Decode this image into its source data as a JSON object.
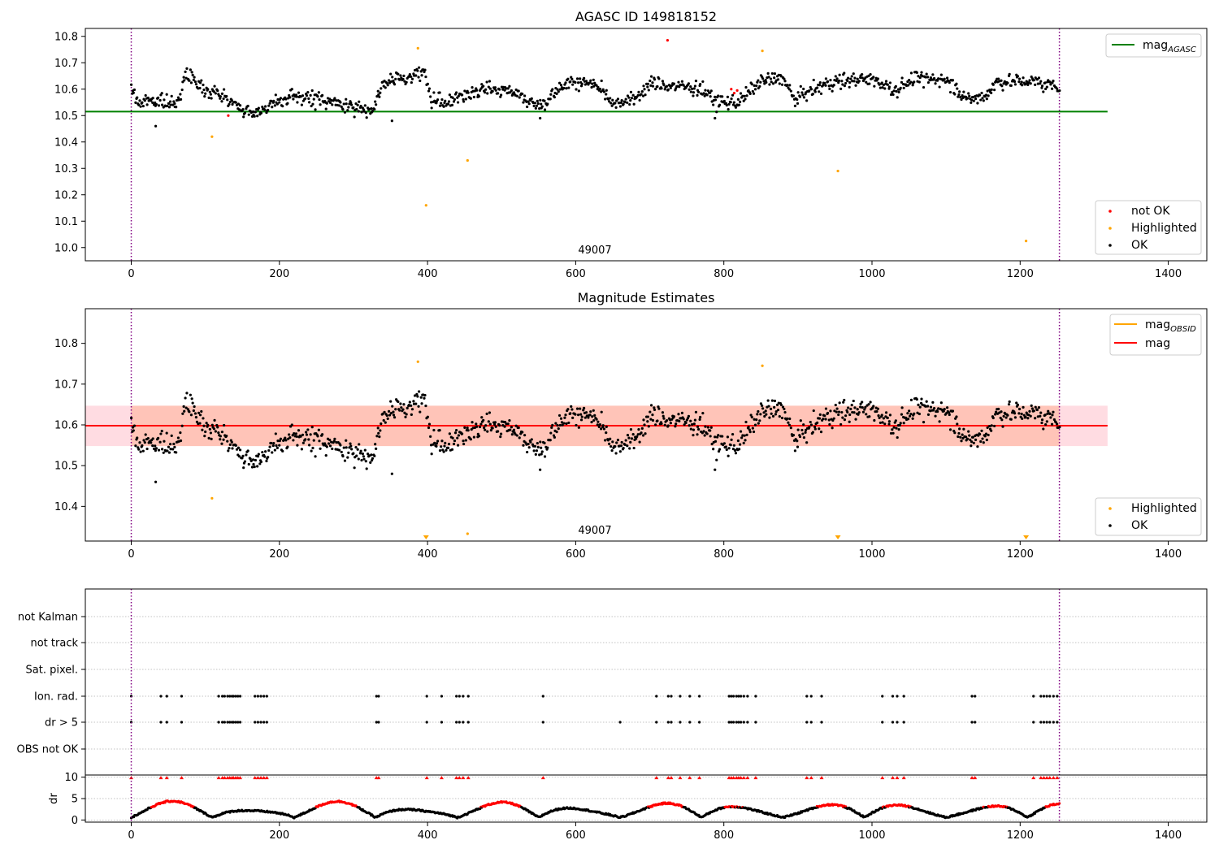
{
  "chart_data": [
    {
      "type": "scatter",
      "title": "AGASC ID 149818152",
      "xlim": [
        -62,
        1452
      ],
      "ylim": [
        9.95,
        10.83
      ],
      "x_ticks": [
        0,
        200,
        400,
        600,
        800,
        1000,
        1200,
        1400
      ],
      "y_ticks": [
        10.0,
        10.1,
        10.2,
        10.3,
        10.4,
        10.5,
        10.6,
        10.7,
        10.8
      ],
      "y_tick_labels": [
        "10.0",
        "10.1",
        "10.2",
        "10.3",
        "10.4",
        "10.5",
        "10.6",
        "10.7",
        "10.8"
      ],
      "obsid_label": "49007",
      "obsid_label_x": 620,
      "vertical_lines_x": [
        0,
        1253
      ],
      "line_legend": [
        {
          "label_main": "mag",
          "label_sub": "AGASC",
          "color": "#008000"
        }
      ],
      "point_legend": [
        {
          "label": "not OK",
          "color": "#ff0000"
        },
        {
          "label": "Highlighted",
          "color": "#ffa500"
        },
        {
          "label": "OK",
          "color": "#000000"
        }
      ],
      "reference_line": {
        "name": "mag_AGASC",
        "value": 10.515,
        "x_range": [
          -62,
          1318
        ],
        "color": "#008000"
      },
      "highlighted_points": [
        {
          "x": 109,
          "y": 10.42
        },
        {
          "x": 387,
          "y": 10.755
        },
        {
          "x": 398,
          "y": 10.16
        },
        {
          "x": 454,
          "y": 10.33
        },
        {
          "x": 852,
          "y": 10.745
        },
        {
          "x": 954,
          "y": 10.29
        },
        {
          "x": 1208,
          "y": 10.025
        }
      ],
      "not_ok_points": [
        {
          "x": 131,
          "y": 10.5
        },
        {
          "x": 724,
          "y": 10.785
        },
        {
          "x": 810,
          "y": 10.6
        },
        {
          "x": 814,
          "y": 10.585
        },
        {
          "x": 818,
          "y": 10.595
        }
      ],
      "ok_series": {
        "x_start": 0,
        "x_end": 1253,
        "count": 1100,
        "seed": 7,
        "level_knots": [
          [
            0,
            10.6
          ],
          [
            10,
            10.55
          ],
          [
            30,
            10.56
          ],
          [
            60,
            10.54
          ],
          [
            75,
            10.66
          ],
          [
            100,
            10.6
          ],
          [
            120,
            10.58
          ],
          [
            135,
            10.55
          ],
          [
            160,
            10.51
          ],
          [
            190,
            10.54
          ],
          [
            220,
            10.57
          ],
          [
            260,
            10.56
          ],
          [
            300,
            10.53
          ],
          [
            325,
            10.52
          ],
          [
            340,
            10.62
          ],
          [
            370,
            10.64
          ],
          [
            395,
            10.67
          ],
          [
            405,
            10.56
          ],
          [
            430,
            10.55
          ],
          [
            470,
            10.6
          ],
          [
            520,
            10.59
          ],
          [
            545,
            10.54
          ],
          [
            560,
            10.55
          ],
          [
            580,
            10.62
          ],
          [
            610,
            10.63
          ],
          [
            630,
            10.61
          ],
          [
            650,
            10.55
          ],
          [
            680,
            10.56
          ],
          [
            700,
            10.62
          ],
          [
            740,
            10.61
          ],
          [
            770,
            10.6
          ],
          [
            790,
            10.55
          ],
          [
            820,
            10.55
          ],
          [
            850,
            10.63
          ],
          [
            880,
            10.64
          ],
          [
            895,
            10.56
          ],
          [
            920,
            10.6
          ],
          [
            950,
            10.63
          ],
          [
            1000,
            10.64
          ],
          [
            1030,
            10.6
          ],
          [
            1060,
            10.64
          ],
          [
            1100,
            10.64
          ],
          [
            1130,
            10.56
          ],
          [
            1150,
            10.57
          ],
          [
            1170,
            10.63
          ],
          [
            1210,
            10.63
          ],
          [
            1253,
            10.61
          ]
        ],
        "noise": 0.025,
        "outliers": [
          {
            "x": 33,
            "y": 10.46
          },
          {
            "x": 352,
            "y": 10.48
          },
          {
            "x": 552,
            "y": 10.49
          },
          {
            "x": 788,
            "y": 10.49
          }
        ]
      }
    },
    {
      "type": "scatter",
      "title": "Magnitude Estimates",
      "xlim": [
        -62,
        1452
      ],
      "ylim": [
        10.315,
        10.885
      ],
      "x_ticks": [
        0,
        200,
        400,
        600,
        800,
        1000,
        1200,
        1400
      ],
      "y_ticks": [
        10.4,
        10.5,
        10.6,
        10.7,
        10.8
      ],
      "y_tick_labels": [
        "10.4",
        "10.5",
        "10.6",
        "10.7",
        "10.8"
      ],
      "obsid_label": "49007",
      "obsid_label_x": 620,
      "vertical_lines_x": [
        0,
        1253
      ],
      "line_legend": [
        {
          "label_main": "mag",
          "label_sub": "OBSID",
          "color": "#ffa500"
        },
        {
          "label_main": "mag",
          "label_sub": "",
          "color": "#ff0000"
        }
      ],
      "point_legend": [
        {
          "label": "Highlighted",
          "color": "#ffa500"
        },
        {
          "label": "OK",
          "color": "#000000"
        }
      ],
      "mag_line": {
        "value": 10.598,
        "x_range": [
          -62,
          1318
        ],
        "color": "#ff0000"
      },
      "mag_band": {
        "low": 10.548,
        "high": 10.647,
        "x_range": [
          -62,
          1318
        ],
        "color": "#ffc0cb"
      },
      "obsid_line": {
        "value": 10.598,
        "x_range": [
          0,
          1253
        ],
        "color": "#ffa500"
      },
      "obsid_band": {
        "low": 10.548,
        "high": 10.647,
        "x_range": [
          0,
          1253
        ],
        "color": "#ffa07a"
      },
      "highlighted_points": [
        {
          "x": 109,
          "y": 10.42
        },
        {
          "x": 387,
          "y": 10.755
        },
        {
          "x": 454,
          "y": 10.333
        },
        {
          "x": 852,
          "y": 10.745
        }
      ],
      "clipped_markers_x": [
        398,
        954,
        1208
      ],
      "ok_series_ref": 0
    },
    {
      "type": "scatter",
      "title": "",
      "xlim": [
        -62,
        1452
      ],
      "x_ticks": [
        0,
        200,
        400,
        600,
        800,
        1000,
        1200,
        1400
      ],
      "vertical_lines_x": [
        0,
        1253
      ],
      "flag_rows": [
        "not Kalman",
        "not track",
        "Sat. pixel.",
        "Ion. rad.",
        "dr > 5",
        "OBS not OK"
      ],
      "ion_rad_x": [
        0,
        40,
        48,
        68,
        118,
        123,
        126,
        130,
        133,
        136,
        138,
        141,
        144,
        147,
        167,
        171,
        175,
        179,
        183,
        331,
        334,
        399,
        419,
        439,
        443,
        448,
        455,
        556,
        709,
        725,
        729,
        741,
        754,
        767,
        807,
        810,
        813,
        817,
        820,
        823,
        827,
        832,
        843,
        912,
        918,
        932,
        1014,
        1028,
        1034,
        1043,
        1135,
        1139,
        1218,
        1228,
        1232,
        1236,
        1240,
        1245,
        1250
      ],
      "dr_gt5_x": [
        0,
        40,
        48,
        68,
        118,
        123,
        126,
        130,
        133,
        136,
        138,
        141,
        144,
        147,
        167,
        171,
        175,
        179,
        183,
        331,
        334,
        399,
        419,
        439,
        443,
        448,
        455,
        556,
        660,
        709,
        725,
        729,
        741,
        754,
        767,
        807,
        810,
        813,
        817,
        820,
        823,
        827,
        832,
        843,
        912,
        918,
        932,
        1014,
        1028,
        1034,
        1043,
        1135,
        1139,
        1218,
        1228,
        1232,
        1236,
        1240,
        1245,
        1250
      ],
      "dr_panel": {
        "ylabel": "dr",
        "ylim": [
          -0.5,
          10.5
        ],
        "y_ticks": [
          0,
          5,
          10
        ],
        "y_tick_labels": [
          "0",
          "5",
          "10"
        ],
        "clipped_x": [
          0,
          40,
          48,
          68,
          118,
          123,
          126,
          130,
          133,
          136,
          138,
          141,
          144,
          147,
          167,
          171,
          175,
          179,
          183,
          331,
          334,
          399,
          419,
          439,
          443,
          448,
          455,
          556,
          709,
          725,
          729,
          741,
          754,
          767,
          807,
          810,
          813,
          817,
          820,
          823,
          827,
          832,
          843,
          912,
          918,
          932,
          1014,
          1028,
          1034,
          1043,
          1135,
          1139,
          1218,
          1228,
          1232,
          1236,
          1240,
          1245,
          1250
        ],
        "period": 110,
        "amplitude": 3.8,
        "red_threshold": 3.0
      }
    }
  ],
  "colors": {
    "ok": "#000000",
    "highlighted": "#ffa500",
    "not_ok": "#ff0000",
    "agasc_line": "#008000",
    "obsid_line": "#ffa500",
    "mag_line": "#ff0000",
    "vline": "#800080",
    "grid": "#b0b0b0"
  }
}
